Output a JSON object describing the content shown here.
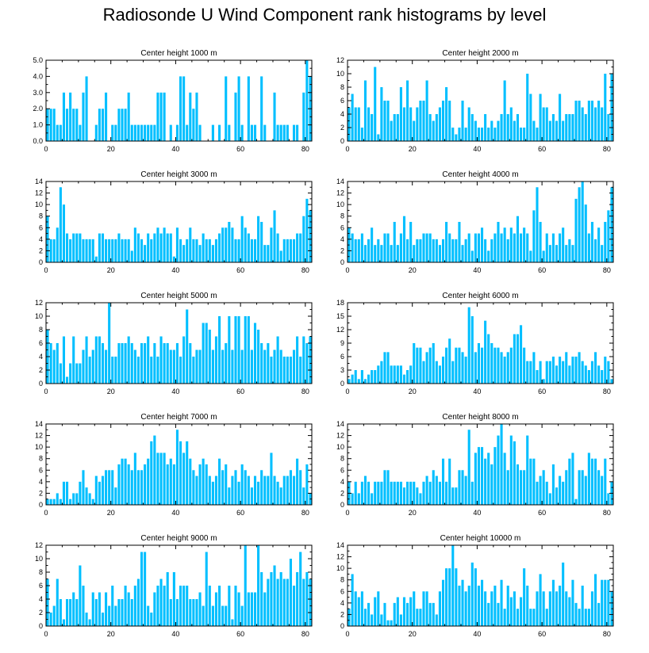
{
  "figure_title": "Radiosonde U Wind Component rank histograms by level",
  "bar_color": "#00BFFF",
  "chart_data": [
    {
      "type": "bar",
      "title": "Center height 1000 m",
      "xlabel": "",
      "ylabel": "",
      "xlim": [
        0,
        82
      ],
      "ylim": [
        0,
        5
      ],
      "xticks": [
        0,
        20,
        40,
        60,
        80
      ],
      "yticks": [
        0,
        1,
        2,
        3,
        4,
        5
      ],
      "ytick_labels": [
        "0.0",
        "1.0",
        "2.0",
        "3.0",
        "4.0",
        "5.0"
      ],
      "values": [
        2,
        2,
        2,
        1,
        1,
        3,
        2,
        3,
        2,
        2,
        1,
        3,
        4,
        0,
        0,
        1,
        2,
        2,
        3,
        0,
        1,
        1,
        2,
        2,
        2,
        3,
        1,
        1,
        1,
        1,
        1,
        1,
        1,
        1,
        3,
        3,
        3,
        0,
        1,
        0,
        1,
        4,
        4,
        1,
        3,
        2,
        3,
        1,
        0,
        0,
        0,
        1,
        0,
        1,
        0,
        4,
        1,
        0,
        3,
        4,
        1,
        0,
        4,
        1,
        1,
        0,
        4,
        1,
        0,
        0,
        3,
        1,
        1,
        1,
        1,
        0,
        1,
        1,
        0,
        3,
        5,
        4
      ]
    },
    {
      "type": "bar",
      "title": "Center height 2000 m",
      "xlabel": "",
      "ylabel": "",
      "xlim": [
        0,
        82
      ],
      "ylim": [
        0,
        12
      ],
      "xticks": [
        0,
        20,
        40,
        60,
        80
      ],
      "yticks": [
        0,
        2,
        4,
        6,
        8,
        10,
        12
      ],
      "values": [
        5,
        7,
        5,
        5,
        2,
        9,
        5,
        4,
        11,
        1,
        8,
        6,
        6,
        3,
        4,
        4,
        8,
        5,
        9,
        5,
        3,
        5,
        6,
        6,
        9,
        4,
        3,
        4,
        5,
        6,
        8,
        6,
        2,
        1,
        2,
        6,
        2,
        5,
        4,
        3,
        2,
        2,
        4,
        2,
        3,
        2,
        3,
        4,
        9,
        4,
        5,
        3,
        4,
        2,
        2,
        10,
        7,
        3,
        2,
        7,
        5,
        5,
        3,
        4,
        3,
        7,
        3,
        4,
        4,
        4,
        6,
        6,
        5,
        4,
        6,
        6,
        5,
        6,
        5,
        10,
        4,
        10
      ]
    },
    {
      "type": "bar",
      "title": "Center height 3000 m",
      "xlabel": "",
      "ylabel": "",
      "xlim": [
        0,
        82
      ],
      "ylim": [
        0,
        14
      ],
      "xticks": [
        0,
        20,
        40,
        60,
        80
      ],
      "yticks": [
        0,
        2,
        4,
        6,
        8,
        10,
        12,
        14
      ],
      "values": [
        8,
        4,
        4,
        6,
        13,
        10,
        5,
        4,
        5,
        5,
        5,
        4,
        4,
        4,
        4,
        1,
        5,
        5,
        4,
        4,
        4,
        4,
        5,
        4,
        4,
        4,
        2,
        6,
        5,
        4,
        3,
        5,
        4,
        5,
        6,
        5,
        6,
        5,
        5,
        1,
        6,
        4,
        3,
        4,
        6,
        4,
        4,
        3,
        5,
        4,
        4,
        3,
        4,
        5,
        6,
        6,
        7,
        6,
        4,
        4,
        8,
        6,
        5,
        4,
        4,
        8,
        7,
        3,
        3,
        6,
        9,
        5,
        2,
        4,
        4,
        4,
        4,
        5,
        5,
        8,
        11,
        9
      ]
    },
    {
      "type": "bar",
      "title": "Center height 4000 m",
      "xlabel": "",
      "ylabel": "",
      "xlim": [
        0,
        82
      ],
      "ylim": [
        0,
        14
      ],
      "xticks": [
        0,
        20,
        40,
        60,
        80
      ],
      "yticks": [
        0,
        2,
        4,
        6,
        8,
        10,
        12,
        14
      ],
      "values": [
        6,
        5,
        4,
        4,
        5,
        3,
        4,
        6,
        3,
        4,
        3,
        5,
        5,
        3,
        7,
        3,
        5,
        8,
        4,
        7,
        3,
        4,
        4,
        5,
        5,
        5,
        4,
        4,
        3,
        4,
        7,
        5,
        4,
        4,
        7,
        3,
        4,
        5,
        2,
        5,
        5,
        6,
        4,
        2,
        4,
        5,
        7,
        5,
        6,
        4,
        6,
        5,
        8,
        5,
        6,
        5,
        2,
        9,
        13,
        7,
        2,
        5,
        3,
        5,
        3,
        5,
        6,
        3,
        4,
        3,
        11,
        13,
        14,
        10,
        5,
        7,
        4,
        6,
        3,
        7,
        9,
        13
      ]
    },
    {
      "type": "bar",
      "title": "Center height 5000 m",
      "xlabel": "",
      "ylabel": "",
      "xlim": [
        0,
        82
      ],
      "ylim": [
        0,
        12
      ],
      "xticks": [
        0,
        20,
        40,
        60,
        80
      ],
      "yticks": [
        0,
        2,
        4,
        6,
        8,
        10,
        12
      ],
      "values": [
        8,
        6,
        5,
        6,
        3,
        7,
        1,
        3,
        7,
        3,
        3,
        5,
        7,
        4,
        5,
        7,
        7,
        6,
        5,
        12,
        4,
        4,
        6,
        6,
        6,
        7,
        6,
        5,
        4,
        6,
        6,
        7,
        4,
        6,
        4,
        7,
        6,
        6,
        5,
        5,
        6,
        4,
        7,
        11,
        6,
        4,
        5,
        5,
        9,
        9,
        8,
        5,
        7,
        10,
        5,
        6,
        10,
        5,
        10,
        10,
        5,
        10,
        10,
        5,
        9,
        8,
        6,
        5,
        6,
        4,
        5,
        7,
        5,
        4,
        4,
        4,
        5,
        7,
        4,
        7,
        6,
        7
      ]
    },
    {
      "type": "bar",
      "title": "Center height 6000 m",
      "xlabel": "",
      "ylabel": "",
      "xlim": [
        0,
        82
      ],
      "ylim": [
        0,
        18
      ],
      "xticks": [
        0,
        20,
        40,
        60,
        80
      ],
      "yticks": [
        0,
        3,
        6,
        9,
        12,
        15,
        18
      ],
      "values": [
        1,
        2,
        3,
        1,
        3,
        1,
        2,
        3,
        3,
        4,
        5,
        7,
        7,
        4,
        4,
        4,
        4,
        2,
        3,
        4,
        9,
        8,
        8,
        5,
        7,
        8,
        9,
        5,
        4,
        6,
        8,
        10,
        5,
        8,
        8,
        7,
        6,
        17,
        15,
        7,
        9,
        8,
        14,
        11,
        9,
        8,
        8,
        7,
        6,
        7,
        8,
        11,
        11,
        13,
        8,
        5,
        5,
        7,
        3,
        5,
        1,
        5,
        5,
        6,
        4,
        6,
        5,
        7,
        4,
        6,
        6,
        7,
        5,
        4,
        3,
        5,
        7,
        4,
        3,
        6,
        5,
        1
      ]
    },
    {
      "type": "bar",
      "title": "Center height 7000 m",
      "xlabel": "",
      "ylabel": "",
      "xlim": [
        0,
        82
      ],
      "ylim": [
        0,
        14
      ],
      "xticks": [
        0,
        20,
        40,
        60,
        80
      ],
      "yticks": [
        0,
        2,
        4,
        6,
        8,
        10,
        12,
        14
      ],
      "values": [
        1,
        1,
        1,
        2,
        1,
        4,
        4,
        1,
        2,
        2,
        4,
        6,
        3,
        2,
        1,
        5,
        4,
        5,
        6,
        6,
        6,
        3,
        7,
        8,
        8,
        7,
        6,
        9,
        6,
        6,
        7,
        8,
        11,
        12,
        9,
        9,
        9,
        7,
        8,
        7,
        13,
        11,
        9,
        11,
        8,
        6,
        5,
        7,
        8,
        7,
        5,
        4,
        5,
        8,
        6,
        7,
        3,
        5,
        6,
        4,
        7,
        6,
        5,
        3,
        5,
        4,
        6,
        5,
        5,
        9,
        5,
        4,
        3,
        5,
        5,
        6,
        5,
        8,
        6,
        3,
        7,
        2
      ]
    },
    {
      "type": "bar",
      "title": "Center height 8000 m",
      "xlabel": "",
      "ylabel": "",
      "xlim": [
        0,
        82
      ],
      "ylim": [
        0,
        14
      ],
      "xticks": [
        0,
        20,
        40,
        60,
        80
      ],
      "yticks": [
        0,
        2,
        4,
        6,
        8,
        10,
        12,
        14
      ],
      "values": [
        4,
        2,
        4,
        2,
        4,
        5,
        4,
        2,
        4,
        4,
        4,
        6,
        6,
        4,
        4,
        4,
        4,
        3,
        4,
        4,
        4,
        3,
        2,
        4,
        5,
        4,
        6,
        5,
        4,
        8,
        4,
        8,
        3,
        3,
        6,
        6,
        5,
        13,
        4,
        9,
        10,
        10,
        8,
        9,
        7,
        10,
        12,
        14,
        9,
        6,
        12,
        11,
        7,
        6,
        6,
        12,
        8,
        8,
        4,
        5,
        6,
        4,
        2,
        7,
        3,
        5,
        4,
        6,
        8,
        9,
        1,
        6,
        6,
        5,
        9,
        8,
        8,
        6,
        5,
        8,
        2,
        4
      ]
    },
    {
      "type": "bar",
      "title": "Center height 9000 m",
      "xlabel": "",
      "ylabel": "",
      "xlim": [
        0,
        82
      ],
      "ylim": [
        0,
        12
      ],
      "xticks": [
        0,
        20,
        40,
        60,
        80
      ],
      "yticks": [
        0,
        2,
        4,
        6,
        8,
        10,
        12
      ],
      "values": [
        7,
        2,
        3,
        7,
        4,
        1,
        4,
        4,
        5,
        4,
        9,
        6,
        2,
        1,
        5,
        4,
        5,
        2,
        5,
        3,
        6,
        3,
        4,
        4,
        6,
        5,
        4,
        6,
        7,
        11,
        11,
        3,
        2,
        5,
        6,
        7,
        6,
        8,
        4,
        8,
        4,
        6,
        6,
        6,
        4,
        4,
        4,
        5,
        3,
        11,
        6,
        3,
        5,
        6,
        3,
        3,
        6,
        1,
        6,
        5,
        3,
        12,
        5,
        5,
        5,
        12,
        8,
        5,
        7,
        8,
        9,
        7,
        8,
        7,
        7,
        10,
        6,
        8,
        11,
        7,
        8,
        7
      ]
    },
    {
      "type": "bar",
      "title": "Center height 10000 m",
      "xlabel": "",
      "ylabel": "",
      "xlim": [
        0,
        82
      ],
      "ylim": [
        0,
        14
      ],
      "xticks": [
        0,
        20,
        40,
        60,
        80
      ],
      "yticks": [
        0,
        2,
        4,
        6,
        8,
        10,
        12,
        14
      ],
      "values": [
        3,
        9,
        6,
        5,
        6,
        3,
        4,
        2,
        5,
        6,
        2,
        4,
        1,
        1,
        4,
        5,
        2,
        5,
        4,
        5,
        6,
        3,
        3,
        6,
        6,
        4,
        4,
        2,
        6,
        8,
        10,
        10,
        14,
        10,
        7,
        8,
        6,
        7,
        11,
        10,
        7,
        8,
        6,
        4,
        6,
        7,
        4,
        8,
        3,
        7,
        5,
        6,
        3,
        5,
        10,
        7,
        3,
        3,
        6,
        9,
        6,
        3,
        6,
        8,
        6,
        7,
        11,
        6,
        5,
        8,
        4,
        3,
        7,
        3,
        3,
        6,
        9,
        4,
        8,
        8,
        8,
        6
      ]
    }
  ]
}
